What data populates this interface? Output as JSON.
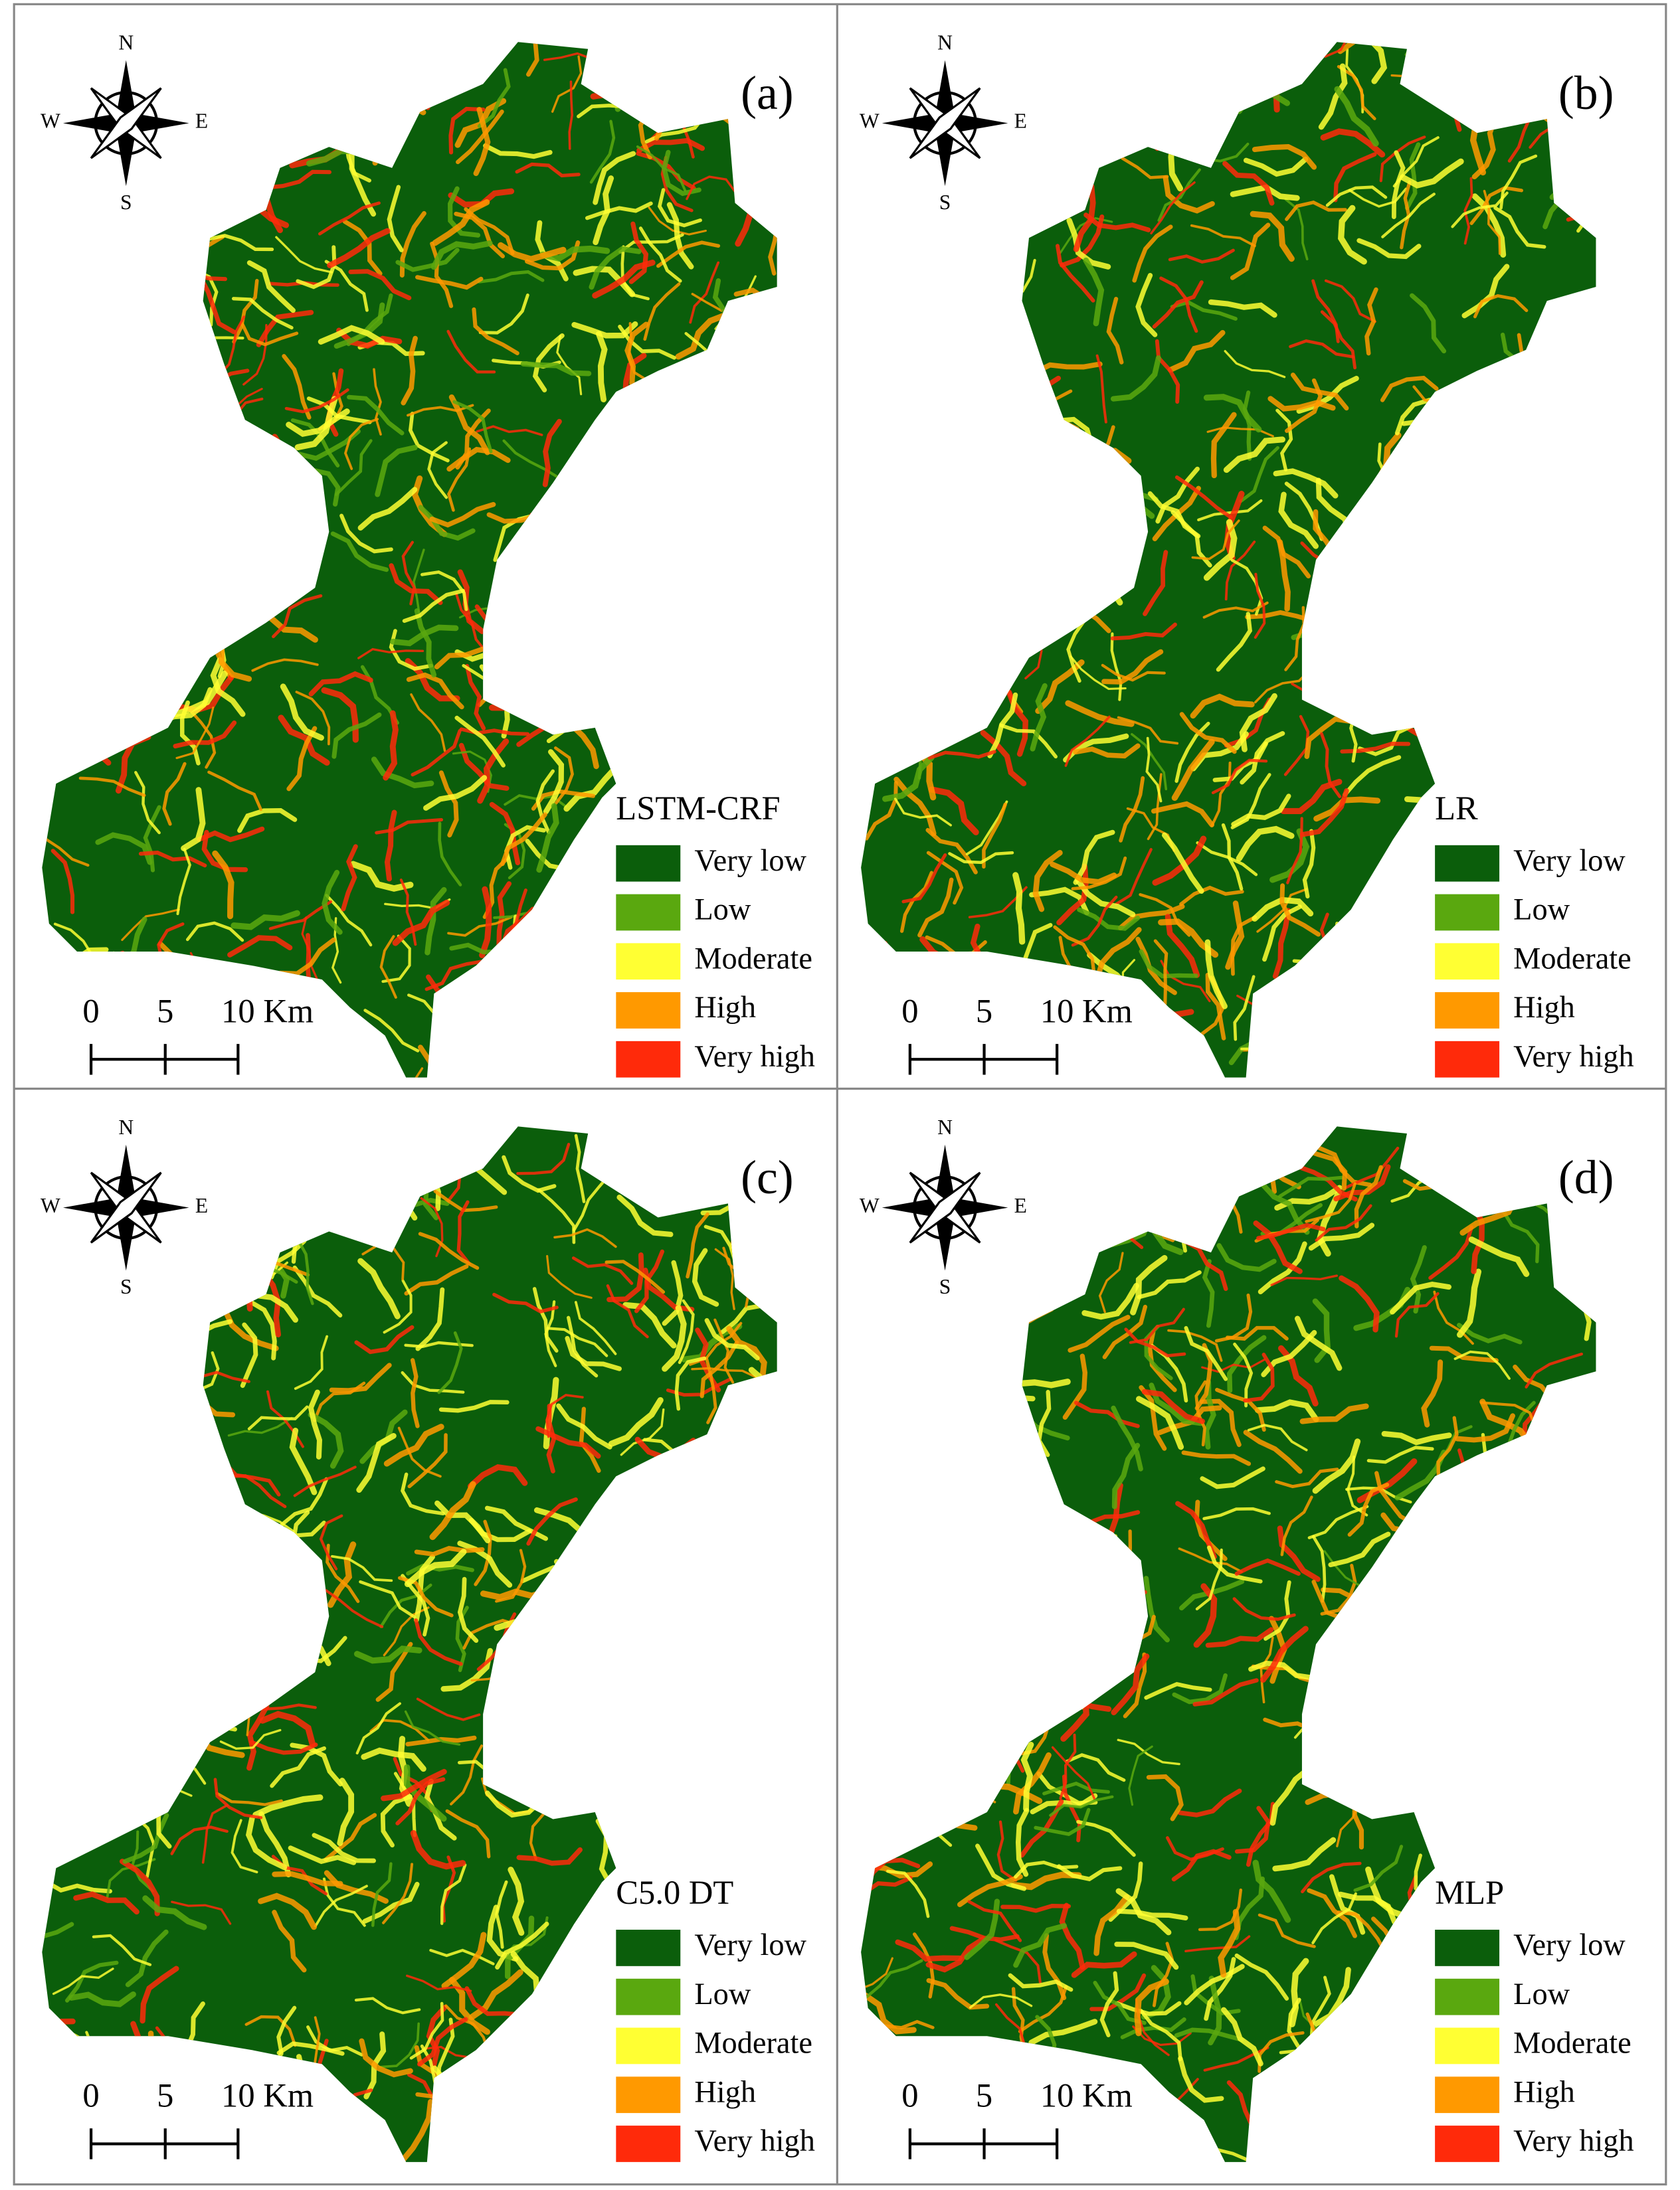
{
  "panels": [
    {
      "label": "(a)",
      "model": "LSTM-CRF",
      "compass": {
        "n": "N",
        "e": "E",
        "s": "S",
        "w": "W"
      },
      "legend": [
        {
          "label": "Very low",
          "color": "#0b5e0b"
        },
        {
          "label": "Low",
          "color": "#5aa80f"
        },
        {
          "label": "Moderate",
          "color": "#ffff33"
        },
        {
          "label": "High",
          "color": "#ff9900"
        },
        {
          "label": "Very high",
          "color": "#ff2a0a"
        }
      ],
      "scale": [
        "0",
        "5",
        "10 Km"
      ]
    },
    {
      "label": "(b)",
      "model": "LR",
      "compass": {
        "n": "N",
        "e": "E",
        "s": "S",
        "w": "W"
      },
      "legend": [
        {
          "label": "Very low",
          "color": "#0b5e0b"
        },
        {
          "label": "Low",
          "color": "#5aa80f"
        },
        {
          "label": "Moderate",
          "color": "#ffff33"
        },
        {
          "label": "High",
          "color": "#ff9900"
        },
        {
          "label": "Very high",
          "color": "#ff2a0a"
        }
      ],
      "scale": [
        "0",
        "5",
        "10 Km"
      ]
    },
    {
      "label": "(c)",
      "model": "C5.0 DT",
      "compass": {
        "n": "N",
        "e": "E",
        "s": "S",
        "w": "W"
      },
      "legend": [
        {
          "label": "Very low",
          "color": "#0b5e0b"
        },
        {
          "label": "Low",
          "color": "#5aa80f"
        },
        {
          "label": "Moderate",
          "color": "#ffff33"
        },
        {
          "label": "High",
          "color": "#ff9900"
        },
        {
          "label": "Very high",
          "color": "#ff2a0a"
        }
      ],
      "scale": [
        "0",
        "5",
        "10 Km"
      ]
    },
    {
      "label": "(d)",
      "model": "MLP",
      "compass": {
        "n": "N",
        "e": "E",
        "s": "S",
        "w": "W"
      },
      "legend": [
        {
          "label": "Very low",
          "color": "#0b5e0b"
        },
        {
          "label": "Low",
          "color": "#5aa80f"
        },
        {
          "label": "Moderate",
          "color": "#ffff33"
        },
        {
          "label": "High",
          "color": "#ff9900"
        },
        {
          "label": "Very high",
          "color": "#ff2a0a"
        }
      ],
      "scale": [
        "0",
        "5",
        "10 Km"
      ]
    }
  ]
}
